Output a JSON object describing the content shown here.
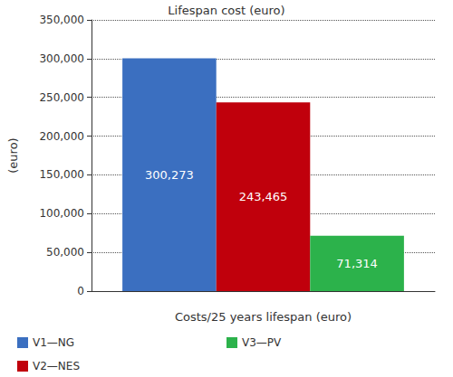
{
  "chart_data": {
    "type": "bar",
    "title": "Lifespan cost (euro)",
    "y_label": "(euro)",
    "categories": [
      "Costs/25 years lifespan (euro)"
    ],
    "series": [
      {
        "name": "V1—NG",
        "color": "#3b6fc0",
        "values": [
          300273
        ],
        "value_labels": [
          "300,273"
        ]
      },
      {
        "name": "V2—NES",
        "color": "#c0000c",
        "values": [
          243465
        ],
        "value_labels": [
          "243,465"
        ]
      },
      {
        "name": "V3—PV",
        "color": "#2cb24b",
        "values": [
          71314
        ],
        "value_labels": [
          "71,314"
        ]
      }
    ],
    "ylim": [
      0,
      350000
    ],
    "yticks": [
      0,
      {
        "value": 50000,
        "label": "50,000"
      },
      {
        "value": 100000,
        "label": "100,000"
      },
      {
        "value": 150000,
        "label": "150,000"
      },
      {
        "value": 200000,
        "label": "200,000"
      },
      {
        "value": 250000,
        "label": "250,000"
      },
      {
        "value": 300000,
        "label": "300,000"
      },
      {
        "value": 350000,
        "label": "350,000"
      }
    ],
    "grid": true,
    "data_labels": true,
    "legend": "bottom"
  }
}
